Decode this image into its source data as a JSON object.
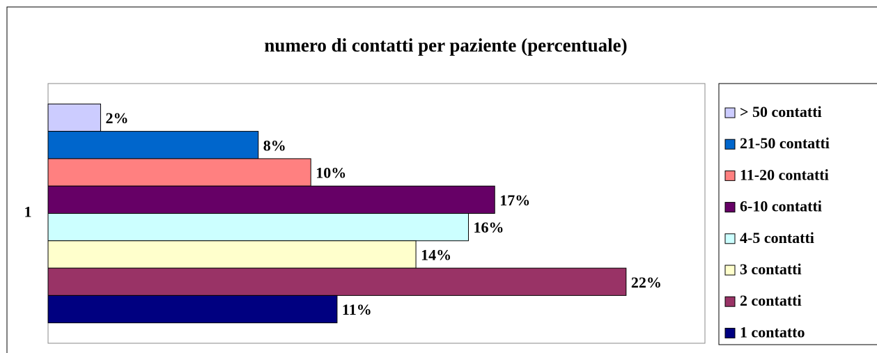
{
  "chart_data": {
    "type": "bar",
    "orientation": "horizontal",
    "title": "numero di contatti per paziente (percentuale)",
    "categories": [
      "1"
    ],
    "xlim": [
      0,
      25
    ],
    "series": [
      {
        "name": "> 50 contatti",
        "color": "#ccccff",
        "values": [
          2
        ],
        "value_labels": [
          "2%"
        ]
      },
      {
        "name": "21-50 contatti",
        "color": "#0066cc",
        "values": [
          8
        ],
        "value_labels": [
          "8%"
        ]
      },
      {
        "name": "11-20 contatti",
        "color": "#ff8080",
        "values": [
          10
        ],
        "value_labels": [
          "10%"
        ]
      },
      {
        "name": "6-10 contatti",
        "color": "#660066",
        "values": [
          17
        ],
        "value_labels": [
          "17%"
        ]
      },
      {
        "name": "4-5 contatti",
        "color": "#ccffff",
        "values": [
          16
        ],
        "value_labels": [
          "16%"
        ]
      },
      {
        "name": "3 contatti",
        "color": "#ffffcc",
        "values": [
          14
        ],
        "value_labels": [
          "14%"
        ]
      },
      {
        "name": "2 contatti",
        "color": "#993366",
        "values": [
          22
        ],
        "value_labels": [
          "22%"
        ]
      },
      {
        "name": "1 contatto",
        "color": "#000080",
        "values": [
          11
        ],
        "value_labels": [
          "11%"
        ]
      }
    ],
    "legend": "right"
  }
}
